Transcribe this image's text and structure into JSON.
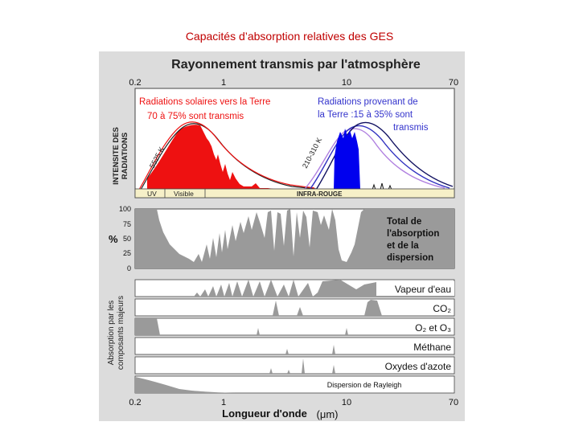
{
  "slide": {
    "title": "Capacités d’absorption relatives des GES"
  },
  "figure": {
    "title": "Rayonnement transmis par l'atmosphère",
    "top_ticks": [
      "0.2",
      "1",
      "10",
      "70"
    ],
    "bottom_ticks": [
      "0.2",
      "1",
      "10",
      "70"
    ],
    "xlabel": "Longueur d'onde",
    "xunit": "(μm)",
    "radiation_panel": {
      "ylabel_line1": "INTENSITE DES",
      "ylabel_line2": "RADIATIONS",
      "solar_text_line1": "Radiations solaires vers la Terre",
      "solar_text_line2": "70 à 75% sont transmis",
      "earth_text_line1": "Radiations provenant de",
      "earth_text_line2": "la Terre :15 à 35% sont",
      "earth_text_line3": "transmis",
      "solar_temp": "5525 K",
      "earth_temp": "210-310 K",
      "band_uv": "UV",
      "band_visible": "Visible",
      "band_ir": "INFRA-ROUGE"
    },
    "total_panel": {
      "ylabel": "%",
      "yticks": [
        "100",
        "75",
        "50",
        "25",
        "0"
      ],
      "label_line1": "Total de",
      "label_line2": "l'absorption",
      "label_line3": "et de la",
      "label_line4": "dispersion"
    },
    "components": {
      "ylabel_line1": "Absorption par les",
      "ylabel_line2": "composants majeurs",
      "strips": [
        {
          "label": "Vapeur d'eau"
        },
        {
          "label": "CO₂"
        },
        {
          "label": "O₂ et O₃"
        },
        {
          "label": "Méthane"
        },
        {
          "label": "Oxydes d'azote"
        },
        {
          "label": "Dispersion de Rayleigh"
        }
      ]
    },
    "colors": {
      "solar": "#ee1111",
      "earth": "#0000ee",
      "absorption": "#9a9a9a",
      "panel_bg": "#dcdcdc",
      "band_bg": "#f6f0c8",
      "violet": "#b080e0"
    }
  }
}
